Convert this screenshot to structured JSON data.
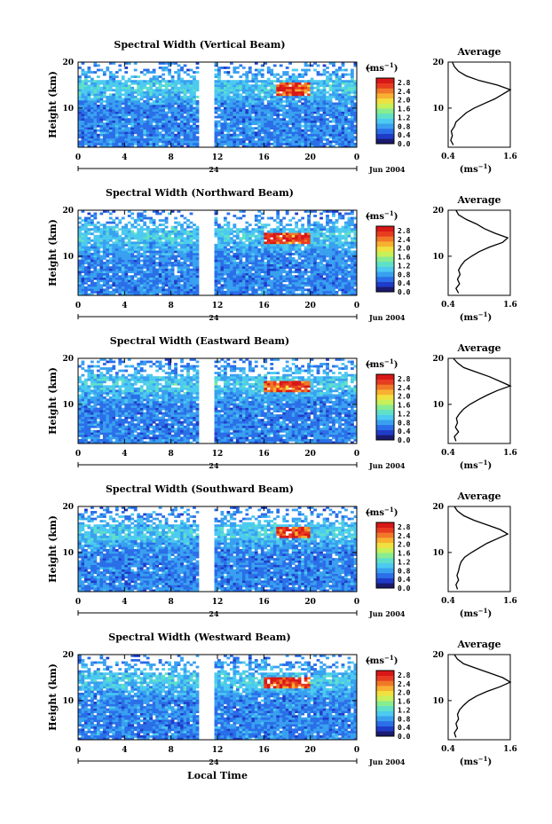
{
  "figure": {
    "shared_xlabel": "Local Time",
    "height_label": "Height (km)",
    "unit_label": "(ms",
    "unit_exp": "−1",
    "month_label": "Jun 2004",
    "day_label": "24",
    "average_title": "Average"
  },
  "chart_data": [
    {
      "type": "heatmap",
      "title": "Spectral Width (Vertical Beam)",
      "ylabel": "Height (km)",
      "xlabel": "Local Time",
      "x_ticks": [
        "0",
        "4",
        "8",
        "12",
        "16",
        "20",
        "0"
      ],
      "y_ticks": [
        "20",
        "10"
      ],
      "ylim": [
        1.5,
        20
      ],
      "xlim_hours": [
        0,
        24
      ],
      "data_gap_hours": [
        10.3,
        11.8
      ],
      "colorbar": {
        "unit": "(ms−1)",
        "ticks": [
          "2.8",
          "2.4",
          "2.0",
          "1.6",
          "1.2",
          "0.8",
          "0.4",
          "0.0"
        ],
        "range": [
          0.0,
          3.0
        ]
      },
      "profile": {
        "title": "Average",
        "xlabel": "(ms−1)",
        "x_ticks": [
          "0.4",
          "1.6"
        ],
        "xlim": [
          0.4,
          1.6
        ],
        "y_ticks": [
          "20",
          "10"
        ],
        "heights": [
          2,
          3,
          4,
          5,
          6,
          7,
          8,
          9,
          10,
          11,
          12,
          13,
          14,
          15,
          16,
          17,
          18,
          19,
          20
        ],
        "values": [
          0.5,
          0.45,
          0.48,
          0.46,
          0.52,
          0.55,
          0.65,
          0.75,
          0.9,
          1.1,
          1.3,
          1.45,
          1.6,
          1.35,
          1.0,
          0.75,
          0.6,
          0.52,
          0.48
        ]
      },
      "peak_region": {
        "hours": [
          17,
          20
        ],
        "heights": [
          12.5,
          15.5
        ]
      }
    },
    {
      "type": "heatmap",
      "title": "Spectral Width (Northward Beam)",
      "ylabel": "Height (km)",
      "xlabel": "Local Time",
      "x_ticks": [
        "0",
        "4",
        "8",
        "12",
        "16",
        "20",
        "0"
      ],
      "y_ticks": [
        "20",
        "10"
      ],
      "ylim": [
        1.5,
        20
      ],
      "xlim_hours": [
        0,
        24
      ],
      "data_gap_hours": [
        10.3,
        11.8
      ],
      "colorbar": {
        "unit": "(ms−1)",
        "ticks": [
          "2.8",
          "2.4",
          "2.0",
          "1.6",
          "1.2",
          "0.8",
          "0.4",
          "0.0"
        ],
        "range": [
          0.0,
          3.0
        ]
      },
      "profile": {
        "title": "Average",
        "xlabel": "(ms−1)",
        "x_ticks": [
          "0.4",
          "1.6"
        ],
        "xlim": [
          0.4,
          1.6
        ],
        "y_ticks": [
          "20",
          "10"
        ],
        "heights": [
          2,
          3,
          4,
          5,
          6,
          7,
          8,
          9,
          10,
          11,
          12,
          13,
          14,
          15,
          16,
          17,
          18,
          19,
          20
        ],
        "values": [
          0.6,
          0.55,
          0.62,
          0.58,
          0.63,
          0.6,
          0.65,
          0.72,
          0.85,
          1.0,
          1.2,
          1.45,
          1.55,
          1.3,
          1.1,
          0.95,
          0.75,
          0.6,
          0.55
        ]
      },
      "peak_region": {
        "hours": [
          16,
          20
        ],
        "heights": [
          12.5,
          15
        ]
      }
    },
    {
      "type": "heatmap",
      "title": "Spectral Width (Eastward Beam)",
      "ylabel": "Height (km)",
      "xlabel": "Local Time",
      "x_ticks": [
        "0",
        "4",
        "8",
        "12",
        "16",
        "20",
        "0"
      ],
      "y_ticks": [
        "20",
        "10"
      ],
      "ylim": [
        1.5,
        20
      ],
      "xlim_hours": [
        0,
        24
      ],
      "data_gap_hours": [
        10.3,
        11.8
      ],
      "colorbar": {
        "unit": "(ms−1)",
        "ticks": [
          "2.8",
          "2.4",
          "2.0",
          "1.6",
          "1.2",
          "0.8",
          "0.4",
          "0.0"
        ],
        "range": [
          0.0,
          3.0
        ]
      },
      "profile": {
        "title": "Average",
        "xlabel": "(ms−1)",
        "x_ticks": [
          "0.4",
          "1.6"
        ],
        "xlim": [
          0.4,
          1.6
        ],
        "y_ticks": [
          "20",
          "10"
        ],
        "heights": [
          2,
          3,
          4,
          5,
          6,
          7,
          8,
          9,
          10,
          11,
          12,
          13,
          14,
          15,
          16,
          17,
          18,
          19,
          20
        ],
        "values": [
          0.55,
          0.52,
          0.6,
          0.54,
          0.58,
          0.56,
          0.62,
          0.7,
          0.82,
          0.98,
          1.15,
          1.35,
          1.6,
          1.4,
          1.2,
          0.95,
          0.7,
          0.58,
          0.5
        ]
      },
      "peak_region": {
        "hours": [
          16,
          20
        ],
        "heights": [
          12.5,
          15
        ]
      }
    },
    {
      "type": "heatmap",
      "title": "Spectral Width (Southward Beam)",
      "ylabel": "Height (km)",
      "xlabel": "Local Time",
      "x_ticks": [
        "0",
        "4",
        "8",
        "12",
        "16",
        "20",
        "0"
      ],
      "y_ticks": [
        "20",
        "10"
      ],
      "ylim": [
        1.5,
        20
      ],
      "xlim_hours": [
        0,
        24
      ],
      "data_gap_hours": [
        10.3,
        11.8
      ],
      "colorbar": {
        "unit": "(ms−1)",
        "ticks": [
          "2.8",
          "2.4",
          "2.0",
          "1.6",
          "1.2",
          "0.8",
          "0.4",
          "0.0"
        ],
        "range": [
          0.0,
          3.0
        ]
      },
      "profile": {
        "title": "Average",
        "xlabel": "(ms−1)",
        "x_ticks": [
          "0.4",
          "1.6"
        ],
        "xlim": [
          0.4,
          1.6
        ],
        "y_ticks": [
          "20",
          "10"
        ],
        "heights": [
          2,
          3,
          4,
          5,
          6,
          7,
          8,
          9,
          10,
          11,
          12,
          13,
          14,
          15,
          16,
          17,
          18,
          19,
          20
        ],
        "values": [
          0.58,
          0.55,
          0.6,
          0.57,
          0.6,
          0.62,
          0.65,
          0.72,
          0.85,
          1.0,
          1.15,
          1.35,
          1.55,
          1.4,
          1.15,
          0.9,
          0.7,
          0.58,
          0.52
        ]
      },
      "peak_region": {
        "hours": [
          17,
          20
        ],
        "heights": [
          13,
          15.5
        ]
      }
    },
    {
      "type": "heatmap",
      "title": "Spectral Width (Westward Beam)",
      "ylabel": "Height (km)",
      "xlabel": "Local Time",
      "x_ticks": [
        "0",
        "4",
        "8",
        "12",
        "16",
        "20",
        "0"
      ],
      "y_ticks": [
        "20",
        "10"
      ],
      "ylim": [
        1.5,
        20
      ],
      "xlim_hours": [
        0,
        24
      ],
      "data_gap_hours": [
        10.3,
        11.8
      ],
      "colorbar": {
        "unit": "(ms−1)",
        "ticks": [
          "2.8",
          "2.4",
          "2.0",
          "1.6",
          "1.2",
          "0.8",
          "0.4",
          "0.0"
        ],
        "range": [
          0.0,
          3.0
        ]
      },
      "profile": {
        "title": "Average",
        "xlabel": "(ms−1)",
        "x_ticks": [
          "0.4",
          "1.6"
        ],
        "xlim": [
          0.4,
          1.6
        ],
        "y_ticks": [
          "20",
          "10"
        ],
        "heights": [
          2,
          3,
          4,
          5,
          6,
          7,
          8,
          9,
          10,
          11,
          12,
          13,
          14,
          15,
          16,
          17,
          18,
          19,
          20
        ],
        "values": [
          0.55,
          0.52,
          0.58,
          0.55,
          0.6,
          0.58,
          0.62,
          0.7,
          0.8,
          0.95,
          1.15,
          1.4,
          1.6,
          1.45,
          1.2,
          0.95,
          0.7,
          0.58,
          0.52
        ]
      },
      "peak_region": {
        "hours": [
          16,
          20
        ],
        "heights": [
          12.5,
          15
        ]
      }
    }
  ],
  "colormap": [
    "#1a1a6e",
    "#1f3cc8",
    "#2a6ee8",
    "#39a0f0",
    "#4ccaf0",
    "#5fe0c8",
    "#88ec90",
    "#c8f05a",
    "#f0e040",
    "#f8b030",
    "#f07828",
    "#e83c20",
    "#d81818"
  ]
}
